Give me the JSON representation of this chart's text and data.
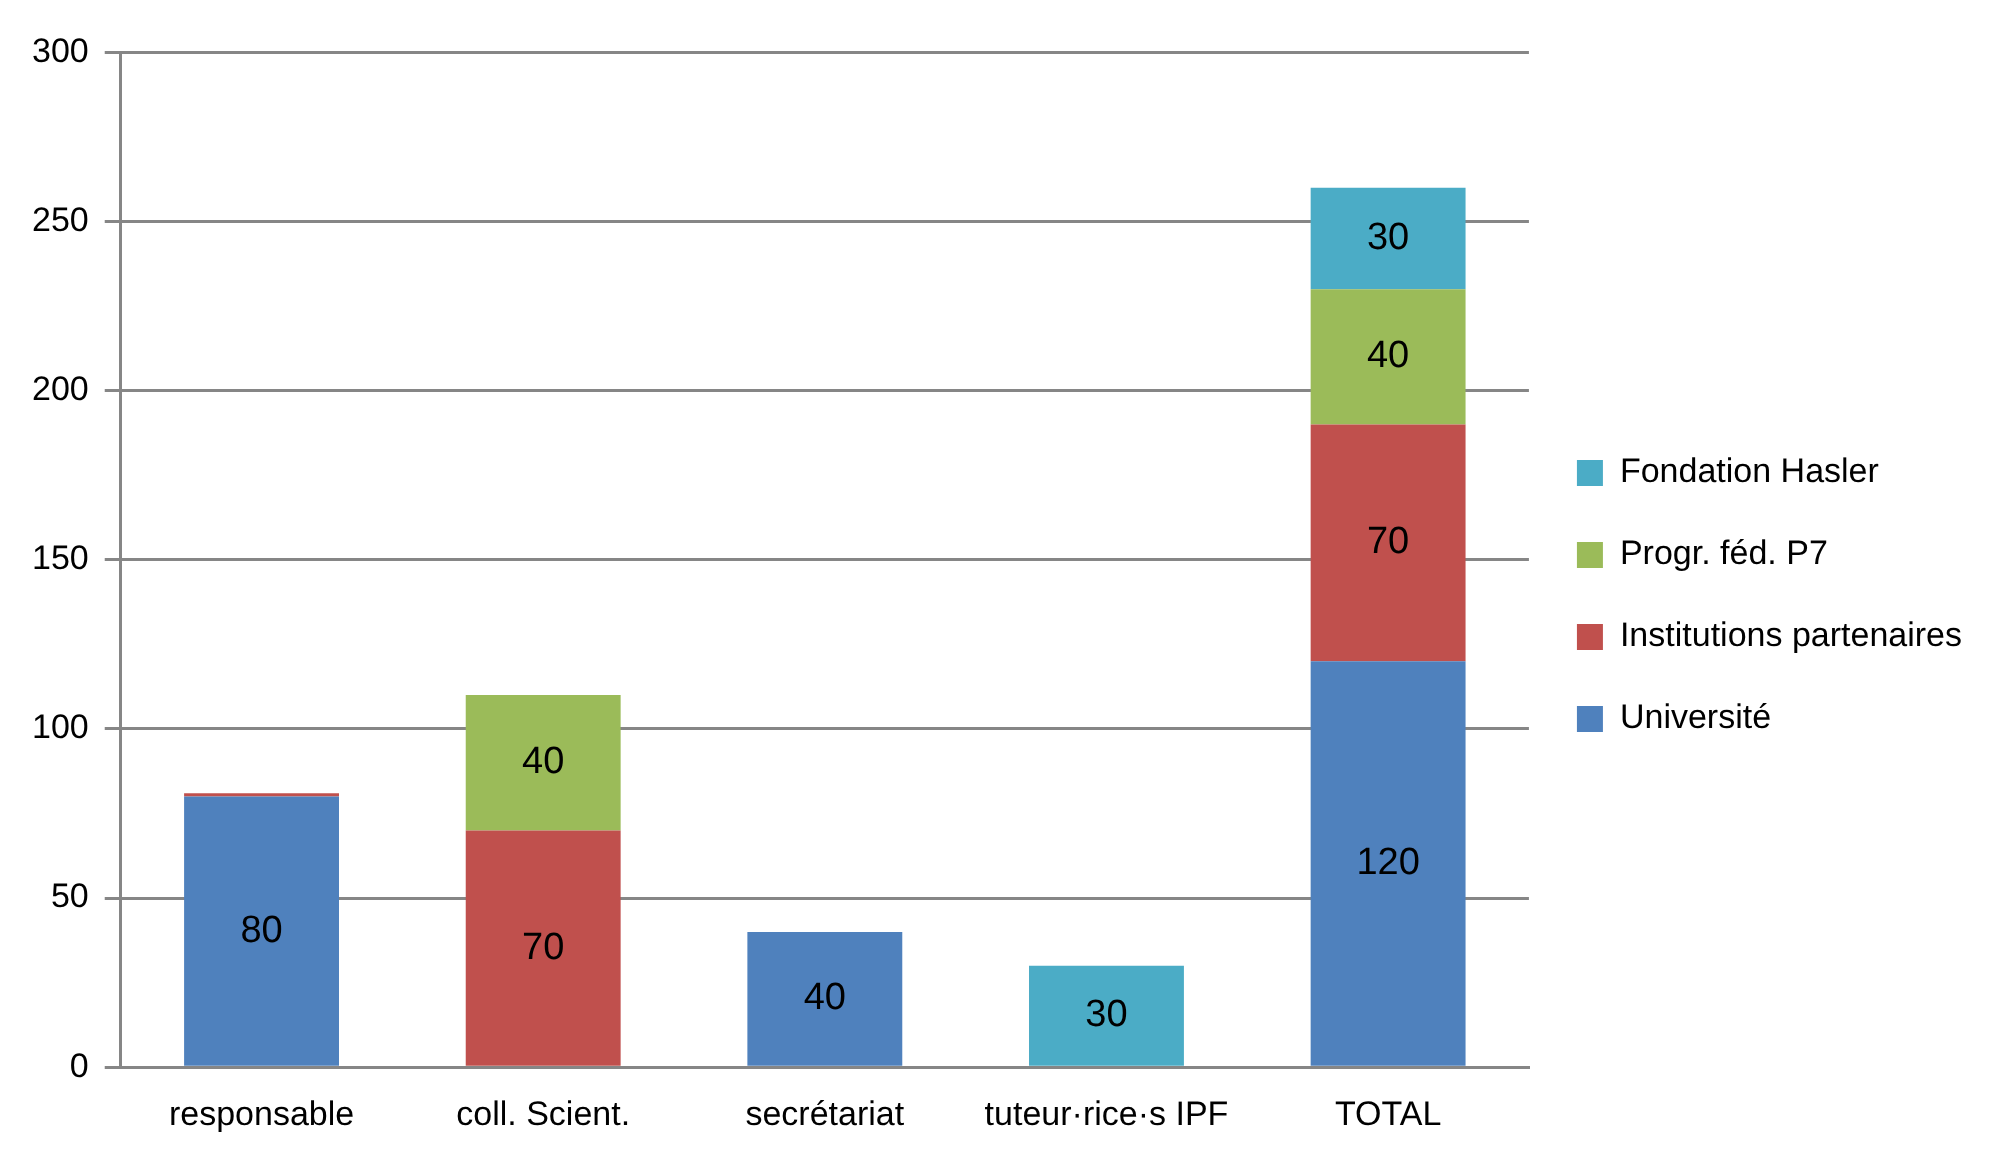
{
  "chart_data": {
    "type": "bar",
    "stacked": true,
    "categories": [
      "responsable",
      "coll. Scient.",
      "secrétariat",
      "tuteur·rice·s IPF",
      "TOTAL"
    ],
    "series": [
      {
        "name": "Université",
        "color": "#4f81bd",
        "values": [
          80,
          null,
          40,
          null,
          120
        ],
        "value_labels": [
          "80",
          null,
          "40",
          null,
          "120"
        ]
      },
      {
        "name": "Institutions partenaires",
        "color": "#c0504d",
        "values": [
          1,
          70,
          null,
          null,
          70
        ],
        "value_labels": [
          null,
          "70",
          null,
          null,
          "70"
        ]
      },
      {
        "name": "Progr. féd. P7",
        "color": "#9bbb59",
        "values": [
          null,
          40,
          null,
          null,
          40
        ],
        "value_labels": [
          null,
          "40",
          null,
          null,
          "40"
        ]
      },
      {
        "name": "Fondation Hasler",
        "color": "#4bacc6",
        "values": [
          null,
          null,
          null,
          30,
          30
        ],
        "value_labels": [
          null,
          null,
          null,
          "30",
          "30"
        ]
      }
    ],
    "ylim": [
      0,
      300
    ],
    "yticks": [
      0,
      50,
      100,
      150,
      200,
      250,
      300
    ],
    "grid": "y",
    "legend": "right"
  }
}
